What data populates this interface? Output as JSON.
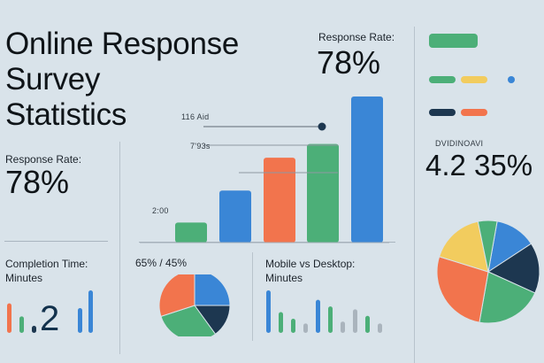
{
  "title": "Online Response\nSurvey\nStatistics",
  "top_kpi": {
    "label": "Response Rate:",
    "value": "78%"
  },
  "left_kpi": {
    "label": "Response Rate:",
    "value": "78%"
  },
  "right_kpi": {
    "label": "DVIDINOAVI",
    "value": "4.2 35%"
  },
  "completion": {
    "label": "Completion Time:\nMinutes",
    "big_digit": "2"
  },
  "pie_mid_label": "65% / 45%",
  "mobile": {
    "label": "Mobile vs Desktop:\nMinutes"
  },
  "colors": {
    "green": "#4caf78",
    "blue": "#3a86d6",
    "orange": "#f2744d",
    "yellow": "#f2cc5e",
    "navy": "#1d3750"
  },
  "chart_data": [
    {
      "type": "bar",
      "annotations": [
        "116 Aid",
        "7'93s",
        "2:00"
      ],
      "values": [
        22,
        57,
        93,
        108,
        160
      ],
      "colors": [
        "green",
        "blue",
        "orange",
        "green",
        "blue"
      ]
    },
    {
      "type": "pie",
      "slices": [
        {
          "value": 25,
          "color": "blue"
        },
        {
          "value": 15,
          "color": "navy"
        },
        {
          "value": 30,
          "color": "green"
        },
        {
          "value": 30,
          "color": "orange"
        }
      ]
    },
    {
      "type": "pie",
      "slices": [
        {
          "value": 13,
          "color": "blue"
        },
        {
          "value": 16,
          "color": "navy"
        },
        {
          "value": 21,
          "color": "green"
        },
        {
          "value": 27,
          "color": "orange"
        },
        {
          "value": 17,
          "color": "yellow"
        },
        {
          "value": 6,
          "color": "green"
        }
      ]
    },
    {
      "type": "bar",
      "values": [
        50,
        28,
        12,
        42,
        72
      ],
      "colors": [
        "orange",
        "green",
        "navy",
        "blue",
        "blue"
      ]
    },
    {
      "type": "bar",
      "values": [
        45,
        22,
        15,
        10,
        35,
        28,
        12,
        25,
        18,
        10
      ],
      "colors": [
        "blue",
        "green",
        "green",
        "#aab4bd",
        "blue",
        "green",
        "#aab4bd",
        "#aab4bd",
        "green",
        "#aab4bd"
      ]
    }
  ],
  "legend": [
    {
      "color": "green",
      "width": 55
    },
    {
      "color": "green",
      "width": 30
    },
    {
      "color": "yellow",
      "width": 30
    },
    {
      "color": "blue",
      "width": 8
    },
    {
      "color": "navy",
      "width": 30
    },
    {
      "color": "orange",
      "width": 30
    }
  ]
}
